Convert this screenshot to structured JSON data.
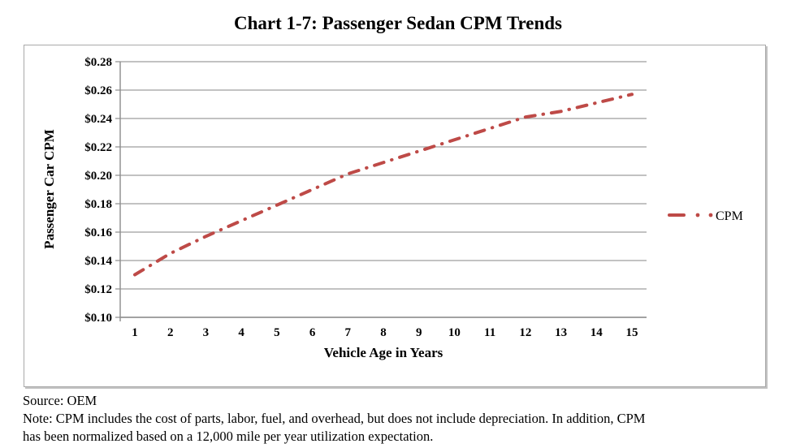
{
  "title": "Chart 1-7: Passenger Sedan CPM Trends",
  "chart_data": {
    "type": "line",
    "x": [
      1,
      2,
      3,
      4,
      5,
      6,
      7,
      8,
      9,
      10,
      11,
      12,
      13,
      14,
      15
    ],
    "series": [
      {
        "name": "CPM",
        "values": [
          0.13,
          0.145,
          0.157,
          0.168,
          0.179,
          0.19,
          0.201,
          0.209,
          0.217,
          0.225,
          0.233,
          0.241,
          0.245,
          0.251,
          0.257
        ]
      }
    ],
    "title": "Chart 1-7: Passenger Sedan CPM Trends",
    "xlabel": "Vehicle Age in Years",
    "ylabel": "Passenger Car  CPM",
    "ylim": [
      0.1,
      0.28
    ],
    "ytick_step": 0.02,
    "ytick_prefix": "$",
    "grid": true,
    "legend_position": "right",
    "line_style": "dash-dot",
    "colors": {
      "line": "#be4a47",
      "gridline": "#9e9e9e",
      "axis": "#8c8c8c",
      "frame_border": "#a9a9a9",
      "text": "#000000"
    }
  },
  "legend": {
    "label": "CPM"
  },
  "footer": {
    "source": "Source: OEM",
    "note_line1": "Note: CPM includes the cost of parts, labor, fuel, and overhead, but does not include depreciation. In addition, CPM",
    "note_line2": "has been normalized based on a 12,000 mile  per year utilization  expectation."
  }
}
